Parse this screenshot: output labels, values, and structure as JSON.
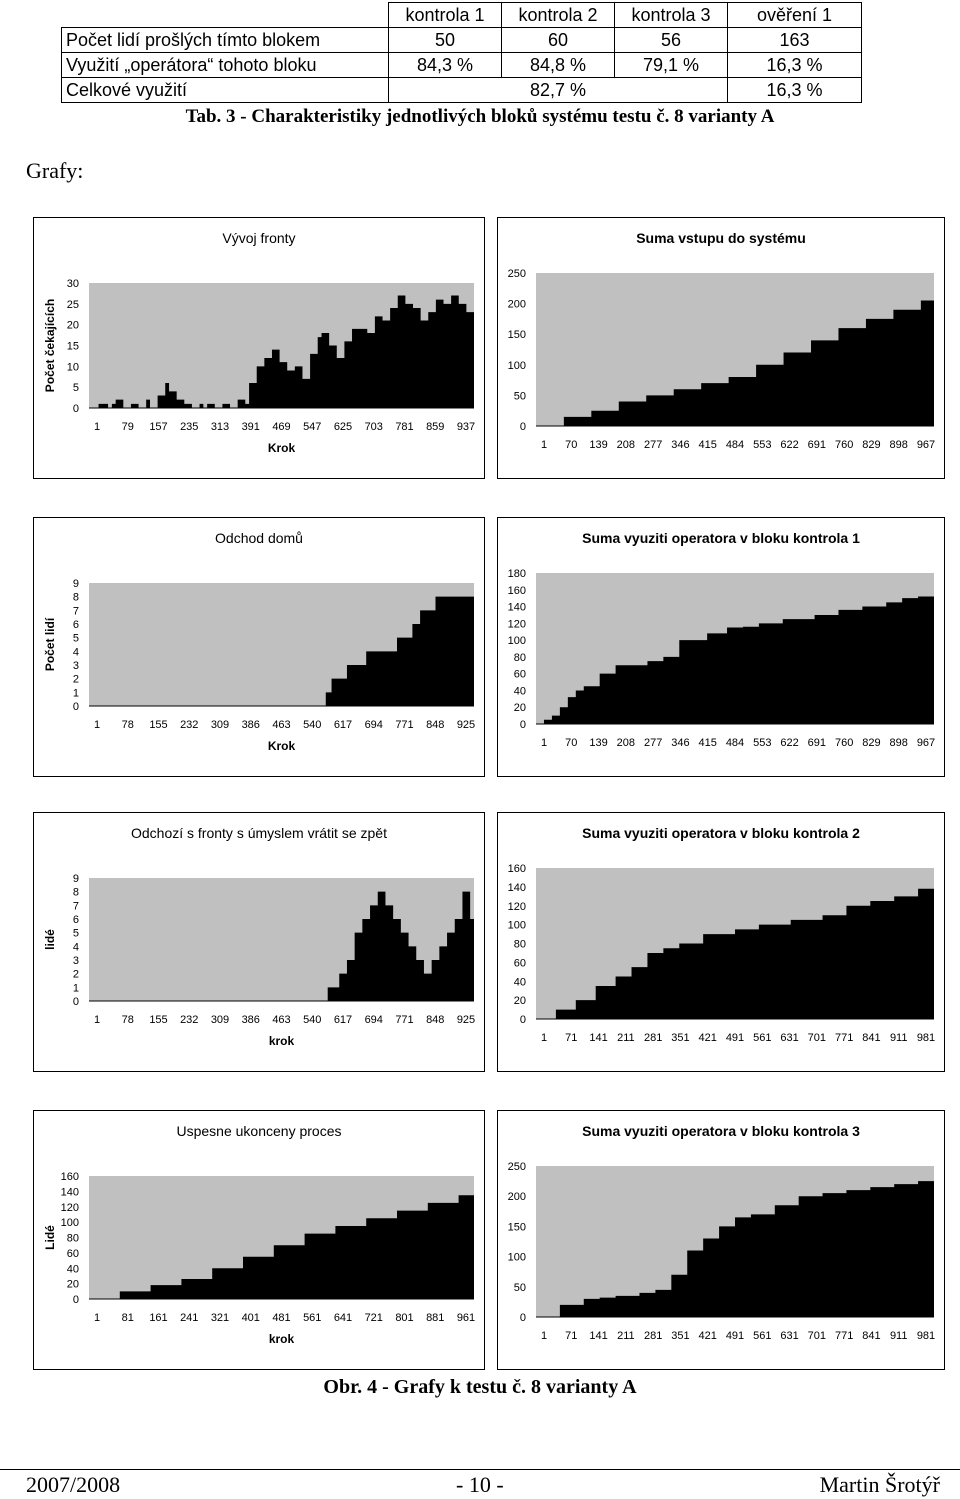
{
  "table": {
    "headers": [
      "kontrola 1",
      "kontrola 2",
      "kontrola 3",
      "ověření 1"
    ],
    "rows": [
      {
        "label": "Počet lidí prošlých tímto blokem",
        "cells": [
          "50",
          "60",
          "56",
          "163"
        ]
      },
      {
        "label": "Využití „operátora“ tohoto bloku",
        "cells": [
          "84,3 %",
          "84,8 %",
          "79,1 %",
          "16,3 %"
        ]
      },
      {
        "label": "Celkové využití",
        "merged": "82,7 %",
        "last": "16,3 %"
      }
    ],
    "caption": "Tab. 3 - Charakteristiky jednotlivých bloků systému testu č. 8 varianty A"
  },
  "section_label": "Grafy:",
  "figure_caption": "Obr. 4 - Grafy k testu č. 8 varianty A",
  "footer": {
    "year": "2007/2008",
    "page": "- 10 -",
    "author": "Martin Šrotýř"
  },
  "colors": {
    "plot_bg": "#c0c0c0",
    "area": "#000000",
    "frame": "#000000"
  },
  "chart_data": [
    {
      "type": "area",
      "title": "Vývoj fronty",
      "title_bold": false,
      "ylabel": "Počet čekajících",
      "xlabel": "Krok",
      "ylim": [
        0,
        30
      ],
      "yticks": [
        "0",
        "5",
        "10",
        "15",
        "20",
        "25",
        "30"
      ],
      "xticks": [
        "1",
        "79",
        "157",
        "235",
        "313",
        "391",
        "469",
        "547",
        "625",
        "703",
        "781",
        "859",
        "937"
      ],
      "x": [
        0,
        25,
        50,
        60,
        70,
        90,
        110,
        130,
        150,
        160,
        180,
        200,
        210,
        230,
        250,
        270,
        290,
        300,
        310,
        330,
        350,
        370,
        390,
        410,
        420,
        440,
        460,
        480,
        500,
        520,
        540,
        560,
        580,
        600,
        610,
        630,
        650,
        670,
        690,
        710,
        730,
        750,
        770,
        790,
        810,
        830,
        850,
        870,
        890,
        910,
        930,
        950,
        970,
        990,
        1010
      ],
      "y": [
        0,
        1,
        0,
        1,
        2,
        0,
        1,
        0,
        2,
        0,
        3,
        6,
        4,
        2,
        1,
        0,
        1,
        0,
        1,
        0,
        1,
        0,
        2,
        1,
        6,
        10,
        12,
        14,
        11,
        9,
        10,
        7,
        13,
        17,
        18,
        15,
        12,
        16,
        19,
        19,
        18,
        22,
        21,
        24,
        27,
        25,
        24,
        21,
        23,
        26,
        25,
        27,
        25,
        23,
        26
      ]
    },
    {
      "type": "area",
      "title": "Suma vstupu do systému",
      "title_bold": true,
      "ylabel": "",
      "xlabel": "",
      "ylim": [
        0,
        250
      ],
      "yticks": [
        "0",
        "50",
        "100",
        "150",
        "200",
        "250"
      ],
      "xticks": [
        "1",
        "70",
        "139",
        "208",
        "277",
        "346",
        "415",
        "484",
        "553",
        "622",
        "691",
        "760",
        "829",
        "898",
        "967"
      ],
      "x": [
        0,
        70,
        139,
        208,
        277,
        346,
        415,
        484,
        553,
        622,
        691,
        760,
        829,
        898,
        967,
        1000
      ],
      "y": [
        0,
        15,
        25,
        40,
        50,
        60,
        70,
        80,
        100,
        120,
        140,
        160,
        175,
        190,
        205,
        210
      ]
    },
    {
      "type": "area",
      "title": "Odchod domů",
      "title_bold": false,
      "ylabel": "Počet lidí",
      "xlabel": "Krok",
      "ylim": [
        0,
        9
      ],
      "yticks": [
        "0",
        "1",
        "2",
        "3",
        "4",
        "5",
        "6",
        "7",
        "8",
        "9"
      ],
      "xticks": [
        "1",
        "78",
        "155",
        "232",
        "309",
        "386",
        "463",
        "540",
        "617",
        "694",
        "771",
        "848",
        "925"
      ],
      "x": [
        0,
        615,
        630,
        670,
        720,
        770,
        800,
        840,
        860,
        880,
        900,
        1000
      ],
      "y": [
        0,
        1,
        2,
        3,
        4,
        4,
        5,
        6,
        7,
        7,
        8,
        8
      ]
    },
    {
      "type": "area",
      "title": "Suma vyuziti operatora v bloku kontrola 1",
      "title_bold": true,
      "ylabel": "",
      "xlabel": "",
      "ylim": [
        0,
        180
      ],
      "yticks": [
        "0",
        "20",
        "40",
        "60",
        "80",
        "100",
        "120",
        "140",
        "160",
        "180"
      ],
      "xticks": [
        "1",
        "70",
        "139",
        "208",
        "277",
        "346",
        "415",
        "484",
        "553",
        "622",
        "691",
        "760",
        "829",
        "898",
        "967"
      ],
      "x": [
        0,
        20,
        40,
        60,
        80,
        100,
        120,
        160,
        200,
        260,
        280,
        320,
        360,
        430,
        480,
        520,
        560,
        620,
        700,
        760,
        820,
        880,
        920,
        960,
        1000
      ],
      "y": [
        0,
        5,
        10,
        20,
        32,
        40,
        45,
        60,
        70,
        70,
        75,
        80,
        100,
        108,
        115,
        116,
        120,
        125,
        130,
        136,
        140,
        145,
        150,
        152,
        155
      ]
    },
    {
      "type": "area",
      "title": "Odchozí s fronty s úmyslem vrátit se zpět",
      "title_bold": false,
      "ylabel": "lidé",
      "xlabel": "krok",
      "ylim": [
        0,
        9
      ],
      "yticks": [
        "0",
        "1",
        "2",
        "3",
        "4",
        "5",
        "6",
        "7",
        "8",
        "9"
      ],
      "xticks": [
        "1",
        "78",
        "155",
        "232",
        "309",
        "386",
        "463",
        "540",
        "617",
        "694",
        "771",
        "848",
        "925"
      ],
      "x": [
        0,
        620,
        650,
        670,
        690,
        710,
        730,
        750,
        770,
        790,
        810,
        830,
        850,
        870,
        890,
        910,
        930,
        950,
        970,
        990,
        1000
      ],
      "y": [
        0,
        1,
        2,
        3,
        5,
        6,
        7,
        8,
        7,
        6,
        5,
        4,
        3,
        2,
        3,
        4,
        5,
        6,
        8,
        6,
        0
      ]
    },
    {
      "type": "area",
      "title": "Suma vyuziti operatora v bloku kontrola 2",
      "title_bold": true,
      "ylabel": "",
      "xlabel": "",
      "ylim": [
        0,
        160
      ],
      "yticks": [
        "0",
        "20",
        "40",
        "60",
        "80",
        "100",
        "120",
        "140",
        "160"
      ],
      "xticks": [
        "1",
        "71",
        "141",
        "211",
        "281",
        "351",
        "421",
        "491",
        "561",
        "631",
        "701",
        "771",
        "841",
        "911",
        "981"
      ],
      "x": [
        0,
        50,
        100,
        150,
        200,
        240,
        280,
        320,
        360,
        420,
        500,
        560,
        640,
        720,
        780,
        840,
        900,
        960,
        1000
      ],
      "y": [
        0,
        10,
        20,
        35,
        45,
        55,
        70,
        75,
        80,
        90,
        95,
        100,
        105,
        110,
        120,
        125,
        130,
        138,
        140
      ]
    },
    {
      "type": "area",
      "title": "Uspesne ukonceny proces",
      "title_bold": false,
      "ylabel": "Lidé",
      "xlabel": "krok",
      "ylim": [
        0,
        160
      ],
      "yticks": [
        "0",
        "20",
        "40",
        "60",
        "80",
        "100",
        "120",
        "140",
        "160"
      ],
      "xticks": [
        "1",
        "81",
        "161",
        "241",
        "321",
        "401",
        "481",
        "561",
        "641",
        "721",
        "801",
        "881",
        "961"
      ],
      "x": [
        0,
        80,
        160,
        240,
        320,
        400,
        480,
        560,
        640,
        720,
        800,
        880,
        960,
        1000
      ],
      "y": [
        0,
        10,
        18,
        26,
        40,
        55,
        70,
        85,
        95,
        105,
        115,
        125,
        135,
        142
      ]
    },
    {
      "type": "area",
      "title": "Suma vyuziti operatora v bloku kontrola 3",
      "title_bold": true,
      "ylabel": "",
      "xlabel": "",
      "ylim": [
        0,
        250
      ],
      "yticks": [
        "0",
        "50",
        "100",
        "150",
        "200",
        "250"
      ],
      "xticks": [
        "1",
        "71",
        "141",
        "211",
        "281",
        "351",
        "421",
        "491",
        "561",
        "631",
        "701",
        "771",
        "841",
        "911",
        "981"
      ],
      "x": [
        0,
        60,
        120,
        160,
        200,
        260,
        300,
        340,
        380,
        420,
        460,
        500,
        540,
        600,
        660,
        720,
        780,
        840,
        900,
        960,
        1000
      ],
      "y": [
        0,
        20,
        30,
        32,
        35,
        40,
        45,
        70,
        110,
        130,
        150,
        165,
        170,
        185,
        200,
        205,
        210,
        215,
        220,
        225,
        230
      ]
    }
  ]
}
